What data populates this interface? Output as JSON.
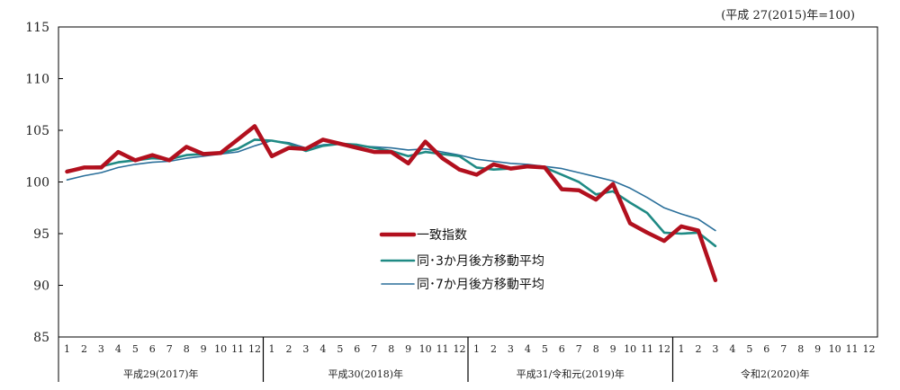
{
  "unit_note": "(平成 27(2015)年=100)",
  "colors": {
    "series1": "#b2101e",
    "series2": "#1f8a84",
    "series3": "#2a6f9a"
  },
  "chart_data": {
    "type": "line",
    "ylim": [
      85,
      115
    ],
    "yticks": [
      "85",
      "90",
      "95",
      "100",
      "105",
      "110",
      "115"
    ],
    "grid": false,
    "legend_position": "center",
    "year_groups": [
      {
        "label": "平成29(2017)年",
        "months": [
          "1",
          "2",
          "3",
          "4",
          "5",
          "6",
          "7",
          "8",
          "9",
          "10",
          "11",
          "12"
        ]
      },
      {
        "label": "平成30(2018)年",
        "months": [
          "1",
          "2",
          "3",
          "4",
          "5",
          "6",
          "7",
          "8",
          "9",
          "10",
          "11",
          "12"
        ]
      },
      {
        "label": "平成31/令和元(2019)年",
        "months": [
          "1",
          "2",
          "3",
          "4",
          "5",
          "6",
          "7",
          "8",
          "9",
          "10",
          "11",
          "12"
        ]
      },
      {
        "label": "令和2(2020)年",
        "months": [
          "1",
          "2",
          "3",
          "4",
          "5",
          "6",
          "7",
          "8",
          "9",
          "10",
          "11",
          "12"
        ]
      }
    ],
    "series": [
      {
        "name": "一致指数",
        "values": [
          101.0,
          101.4,
          101.4,
          102.9,
          102.1,
          102.6,
          102.1,
          103.4,
          102.7,
          102.8,
          104.1,
          105.4,
          102.5,
          103.3,
          103.2,
          104.1,
          103.7,
          103.3,
          102.9,
          102.9,
          101.8,
          103.9,
          102.3,
          101.2,
          100.7,
          101.7,
          101.3,
          101.5,
          101.4,
          99.3,
          99.2,
          98.3,
          99.8,
          96.0,
          95.1,
          94.3,
          95.7,
          95.3,
          90.5
        ]
      },
      {
        "name": "同･3か月後方移動平均",
        "values": [
          101.1,
          101.4,
          101.5,
          101.9,
          102.1,
          102.3,
          102.2,
          102.6,
          102.7,
          102.8,
          103.2,
          104.1,
          104.0,
          103.7,
          103.0,
          103.5,
          103.7,
          103.6,
          103.3,
          103.0,
          102.5,
          102.9,
          102.7,
          102.5,
          101.4,
          101.2,
          101.3,
          101.5,
          101.4,
          100.7,
          100.0,
          98.8,
          99.1,
          98.0,
          97.0,
          95.1,
          95.0,
          95.1,
          93.8
        ]
      },
      {
        "name": "同･7か月後方移動平均",
        "values": [
          100.2,
          100.6,
          100.9,
          101.4,
          101.7,
          101.9,
          102.0,
          102.3,
          102.5,
          102.7,
          102.9,
          103.5,
          104.0,
          103.8,
          103.3,
          103.6,
          103.7,
          103.5,
          103.4,
          103.3,
          103.1,
          103.2,
          102.9,
          102.6,
          102.2,
          102.0,
          101.8,
          101.7,
          101.5,
          101.3,
          100.9,
          100.5,
          100.1,
          99.4,
          98.5,
          97.5,
          96.9,
          96.4,
          95.3
        ]
      }
    ]
  }
}
